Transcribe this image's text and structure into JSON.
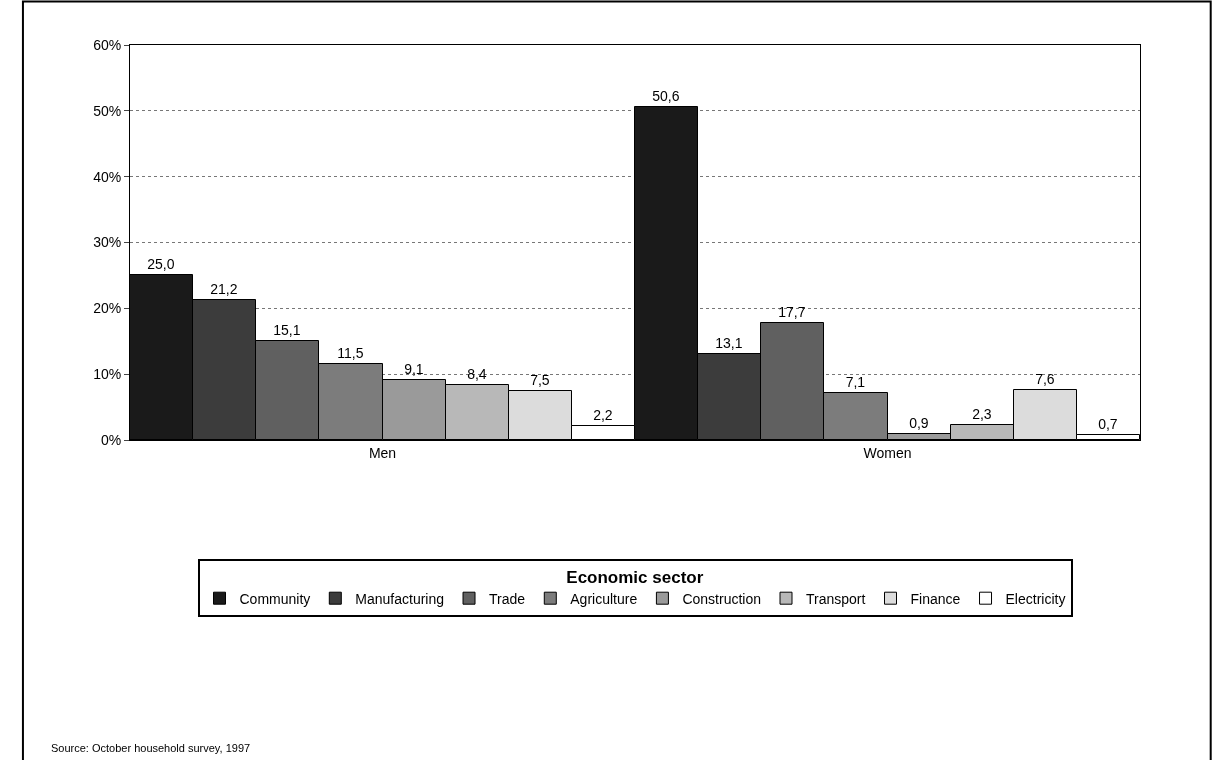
{
  "chart_data": {
    "type": "bar",
    "categories": [
      "Men",
      "Women"
    ],
    "legend_title": "Economic sector",
    "legend": "bottom",
    "ylim": [
      0,
      60
    ],
    "yticks": [
      {
        "value": 0,
        "label": "0%"
      },
      {
        "value": 10,
        "label": "10%"
      },
      {
        "value": 20,
        "label": "20%"
      },
      {
        "value": 30,
        "label": "30%"
      },
      {
        "value": 40,
        "label": "40%"
      },
      {
        "value": 50,
        "label": "50%"
      },
      {
        "value": 60,
        "label": "60%"
      }
    ],
    "grid": "y",
    "series": [
      {
        "name": "Community",
        "color": "#1a1a1a",
        "values": [
          25.0,
          50.6
        ],
        "value_labels": [
          "25,0",
          "50,6"
        ]
      },
      {
        "name": "Manufacturing",
        "color": "#3c3c3c",
        "values": [
          21.2,
          13.1
        ],
        "value_labels": [
          "21,2",
          "13,1"
        ]
      },
      {
        "name": "Trade",
        "color": "#606060",
        "values": [
          15.1,
          17.7
        ],
        "value_labels": [
          "15,1",
          "17,7"
        ]
      },
      {
        "name": "Agriculture",
        "color": "#7c7c7c",
        "values": [
          11.5,
          7.1
        ],
        "value_labels": [
          "11,5",
          "7,1"
        ]
      },
      {
        "name": "Construction",
        "color": "#9a9a9a",
        "values": [
          9.1,
          0.9
        ],
        "value_labels": [
          "9,1",
          "0,9"
        ]
      },
      {
        "name": "Transport",
        "color": "#b8b8b8",
        "values": [
          8.4,
          2.3
        ],
        "value_labels": [
          "8,4",
          "2,3"
        ]
      },
      {
        "name": "Finance",
        "color": "#dcdcdc",
        "values": [
          7.5,
          7.6
        ],
        "value_labels": [
          "7,5",
          "7,6"
        ]
      },
      {
        "name": "Electricity",
        "color": "#ffffff",
        "values": [
          2.2,
          0.7
        ],
        "value_labels": [
          "2,2",
          "0,7"
        ]
      }
    ],
    "annotations": [
      "Source: October household survey, 1997"
    ]
  }
}
